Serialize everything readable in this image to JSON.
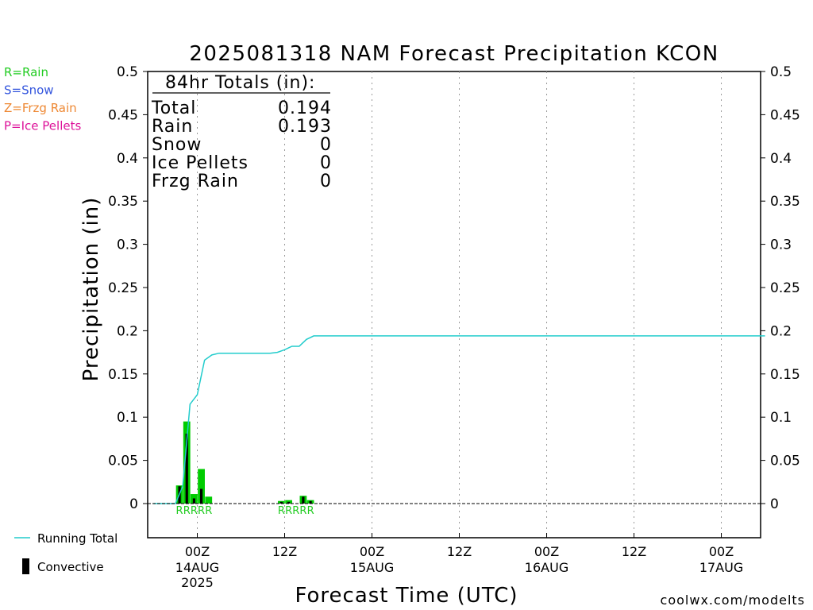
{
  "title": "2025081318 NAM Forecast Precipitation KCON",
  "ylabel": "Precipitation (in)",
  "xlabel": "Forecast Time (UTC)",
  "watermark": "coolwx.com/modelts",
  "type_legend": [
    {
      "text": "R=Rain",
      "color": "#22cc22"
    },
    {
      "text": "S=Snow",
      "color": "#3355dd"
    },
    {
      "text": "Z=Frzg Rain",
      "color": "#ee8833"
    },
    {
      "text": "P=Ice Pellets",
      "color": "#dd1199"
    }
  ],
  "legend": {
    "running_total": "Running Total",
    "convective": "Convective"
  },
  "totals_box": {
    "header": "84hr Totals (in):",
    "rows": [
      {
        "label": "Total",
        "value": "0.194"
      },
      {
        "label": "Rain",
        "value": "0.193"
      },
      {
        "label": "Snow",
        "value": "0"
      },
      {
        "label": "Ice Pellets",
        "value": "0"
      },
      {
        "label": "Frzg Rain",
        "value": "0"
      }
    ]
  },
  "colors": {
    "precip_bar": "#00cc00",
    "convective_bar": "#000000",
    "running_total": "#22cccc",
    "rain_marker": "#22cc22",
    "watermark": "#dd2222",
    "grid": "#999999"
  },
  "chart_data": {
    "type": "bar",
    "title": "2025081318 NAM Forecast Precipitation KCON",
    "xlabel": "Forecast Time (UTC)",
    "ylabel": "Precipitation (in)",
    "x_unit": "forecast hour",
    "xlim": [
      0,
      84
    ],
    "ylim": [
      -0.04,
      0.5
    ],
    "yticks": [
      0,
      0.05,
      0.1,
      0.15,
      0.2,
      0.25,
      0.3,
      0.35,
      0.4,
      0.45,
      0.5
    ],
    "ytick_labels": [
      "0",
      "0.05",
      "0.1",
      "0.15",
      "0.2",
      "0.25",
      "0.3",
      "0.35",
      "0.4",
      "0.45",
      "0.5"
    ],
    "xticks": [
      {
        "hour": 6,
        "label": "00Z",
        "sub": [
          "14AUG",
          "2025"
        ]
      },
      {
        "hour": 18,
        "label": "12Z",
        "sub": []
      },
      {
        "hour": 30,
        "label": "00Z",
        "sub": [
          "15AUG"
        ]
      },
      {
        "hour": 42,
        "label": "12Z",
        "sub": []
      },
      {
        "hour": 54,
        "label": "00Z",
        "sub": [
          "16AUG"
        ]
      },
      {
        "hour": 66,
        "label": "12Z",
        "sub": []
      },
      {
        "hour": 78,
        "label": "00Z",
        "sub": [
          "17AUG"
        ]
      }
    ],
    "grid": "vertical dotted",
    "series": [
      {
        "name": "Total precipitation",
        "kind": "bar",
        "x": [
          4,
          5,
          6,
          7,
          8,
          18,
          19,
          21,
          22
        ],
        "values": [
          0.021,
          0.095,
          0.011,
          0.04,
          0.008,
          0.003,
          0.004,
          0.009,
          0.004
        ]
      },
      {
        "name": "Convective",
        "kind": "bar",
        "x": [
          4,
          5,
          6,
          7,
          8,
          18,
          19,
          21,
          22
        ],
        "values": [
          0.02,
          0.081,
          0.006,
          0.017,
          0.0,
          0.002,
          0.002,
          0.008,
          0.003
        ]
      },
      {
        "name": "Running Total",
        "kind": "line",
        "x": [
          0,
          3,
          4,
          5,
          6,
          7,
          8,
          9,
          10,
          12,
          14,
          16,
          17,
          18,
          19,
          20,
          21,
          22,
          84
        ],
        "values": [
          0,
          0,
          0.02,
          0.115,
          0.126,
          0.166,
          0.172,
          0.174,
          0.174,
          0.174,
          0.174,
          0.174,
          0.175,
          0.178,
          0.182,
          0.182,
          0.19,
          0.194,
          0.194
        ]
      }
    ],
    "precip_type_markers": [
      {
        "x": 4,
        "text": "R"
      },
      {
        "x": 5,
        "text": "R"
      },
      {
        "x": 6,
        "text": "R"
      },
      {
        "x": 7,
        "text": "R"
      },
      {
        "x": 8,
        "text": "R"
      },
      {
        "x": 18,
        "text": "R"
      },
      {
        "x": 19,
        "text": "R"
      },
      {
        "x": 20,
        "text": "R"
      },
      {
        "x": 21,
        "text": "R"
      },
      {
        "x": 22,
        "text": "R"
      }
    ]
  }
}
